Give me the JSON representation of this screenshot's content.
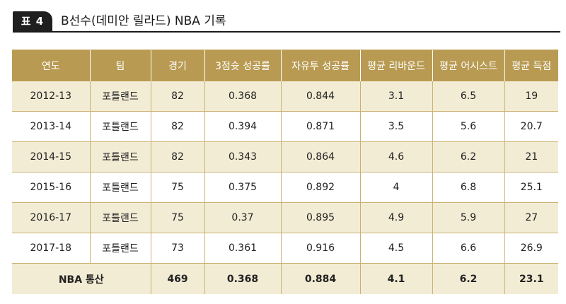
{
  "header": {
    "badge": "표 4",
    "title": "B선수(데미안 릴라드) NBA 기록"
  },
  "table": {
    "columns": [
      "연도",
      "팀",
      "경기",
      "3점슛 성공률",
      "자유투 성공률",
      "평균 리바운드",
      "평균 어시스트",
      "평균 득점"
    ],
    "rows": [
      [
        "2012-13",
        "포틀랜드",
        "82",
        "0.368",
        "0.844",
        "3.1",
        "6.5",
        "19"
      ],
      [
        "2013-14",
        "포틀랜드",
        "82",
        "0.394",
        "0.871",
        "3.5",
        "5.6",
        "20.7"
      ],
      [
        "2014-15",
        "포틀랜드",
        "82",
        "0.343",
        "0.864",
        "4.6",
        "6.2",
        "21"
      ],
      [
        "2015-16",
        "포틀랜드",
        "75",
        "0.375",
        "0.892",
        "4",
        "6.8",
        "25.1"
      ],
      [
        "2016-17",
        "포틀랜드",
        "75",
        "0.37",
        "0.895",
        "4.9",
        "5.9",
        "27"
      ],
      [
        "2017-18",
        "포틀랜드",
        "73",
        "0.361",
        "0.916",
        "4.5",
        "6.6",
        "26.9"
      ]
    ],
    "total": {
      "label": "NBA 통산",
      "values": [
        "469",
        "0.368",
        "0.884",
        "4.1",
        "6.2",
        "23.1"
      ]
    }
  },
  "colors": {
    "header_gold": "#b89a52",
    "row_shade": "#f3ecd5",
    "badge_dark": "#1f1f1f"
  }
}
